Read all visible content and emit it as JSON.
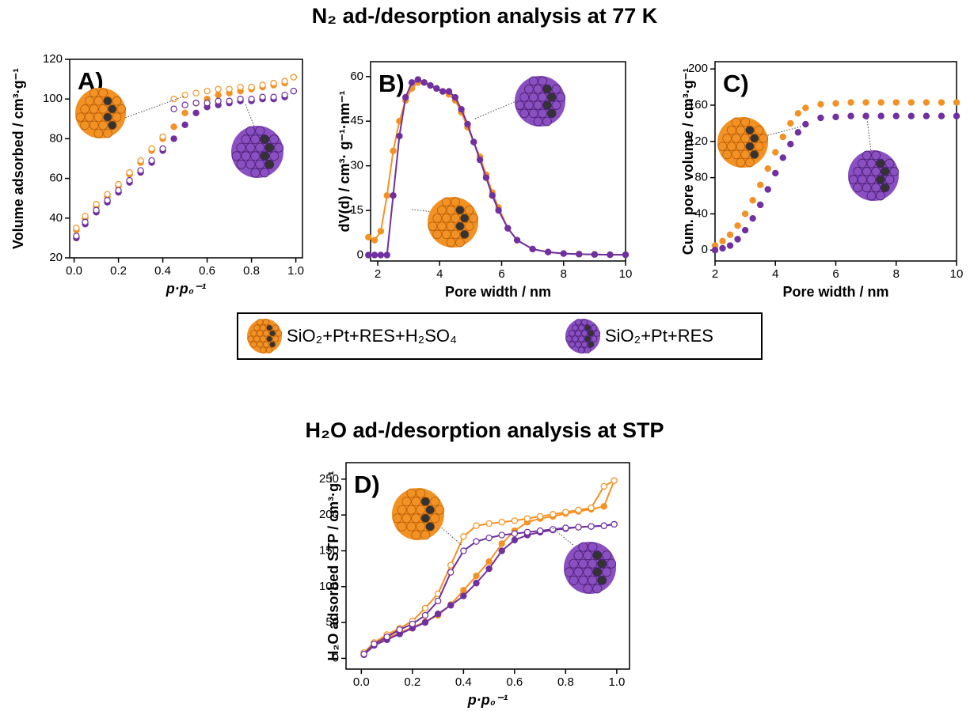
{
  "headings": [
    "N₂ ad-/desorption analysis at 77 K",
    "H₂O ad-/desorption analysis at STP"
  ],
  "chart_data": [
    {
      "type": "scatter",
      "title": "A)",
      "xlabel": "p·p₀⁻¹",
      "ylabel": "Volume adsorbed / cm³·g⁻¹",
      "xlim": [
        -0.02,
        1.03
      ],
      "ylim": [
        20,
        120
      ],
      "xticks": [
        {
          "value": 0,
          "label": "0.0"
        },
        {
          "value": 0.2,
          "label": "0.2"
        },
        {
          "value": 0.4,
          "label": "0.4"
        },
        {
          "value": 0.6,
          "label": "0.6"
        },
        {
          "value": 0.8,
          "label": "0.8"
        },
        {
          "value": 1,
          "label": "1.0"
        }
      ],
      "yticks": [
        20,
        40,
        60,
        80,
        100,
        120
      ],
      "line": false,
      "x": [
        0.01,
        0.05,
        0.1,
        0.15,
        0.2,
        0.25,
        0.3,
        0.35,
        0.4,
        0.45,
        0.5,
        0.55,
        0.6,
        0.65,
        0.7,
        0.75,
        0.8,
        0.85,
        0.9,
        0.95,
        0.99
      ],
      "series": [
        {
          "name": "SiO₂+Pt+RES+H₂SO₄",
          "color": "#f39224",
          "marker": "filled",
          "values": [
            34,
            40,
            46,
            51,
            56,
            62,
            68,
            74,
            80,
            86,
            93,
            98,
            100,
            102,
            103,
            104,
            105,
            106,
            107,
            108,
            111
          ]
        },
        {
          "color": "#f39224",
          "marker": "open",
          "values": [
            35,
            41,
            47,
            52,
            57,
            63,
            69,
            75,
            81,
            100,
            102,
            103,
            104,
            105,
            105,
            106,
            106,
            107,
            108,
            109,
            111
          ]
        },
        {
          "name": "SiO₂+Pt+RES",
          "color": "#7030a0",
          "marker": "filled",
          "values": [
            30,
            37,
            43,
            48,
            53,
            58,
            63,
            68,
            74,
            80,
            87,
            93,
            96,
            97,
            98,
            99,
            99,
            100,
            100,
            101,
            104
          ]
        },
        {
          "color": "#7030a0",
          "marker": "open",
          "values": [
            31,
            38,
            44,
            49,
            54,
            59,
            64,
            69,
            75,
            95,
            97,
            98,
            98,
            99,
            99,
            100,
            100,
            101,
            101,
            102,
            104
          ]
        }
      ]
    },
    {
      "type": "scatter",
      "title": "B)",
      "xlabel": "Pore width / nm",
      "ylabel": "dV(d) / cm³· g⁻¹·nm⁻¹",
      "xlim": [
        1.77,
        10
      ],
      "ylim": [
        -2,
        65
      ],
      "xticks": [
        2,
        4,
        6,
        8,
        10
      ],
      "yticks": [
        0,
        15,
        30,
        45,
        60
      ],
      "line": true,
      "x": [
        1.7,
        1.9,
        2.1,
        2.3,
        2.5,
        2.7,
        2.9,
        3.1,
        3.3,
        3.5,
        3.7,
        3.9,
        4.1,
        4.3,
        4.5,
        4.7,
        4.9,
        5.1,
        5.3,
        5.5,
        5.7,
        5.9,
        6.2,
        6.5,
        7,
        7.5,
        8,
        8.5,
        9,
        9.5,
        10
      ],
      "series": [
        {
          "color": "#f39224",
          "marker": "filled",
          "values": [
            6,
            5,
            8,
            20,
            35,
            45,
            52,
            56,
            58,
            58,
            57,
            56,
            55,
            54,
            52,
            48,
            43,
            38,
            33,
            27,
            21,
            16,
            9,
            5,
            2,
            1,
            0.5,
            0.3,
            0.2,
            0.1,
            0.1
          ]
        },
        {
          "color": "#7030a0",
          "marker": "filled",
          "values": [
            0,
            0,
            0,
            0,
            20,
            40,
            53,
            58,
            59,
            58,
            57,
            56,
            55,
            55,
            53,
            49,
            44,
            38,
            32,
            26,
            20,
            15,
            9,
            5,
            2,
            1,
            0.5,
            0.3,
            0.2,
            0.1,
            0.1
          ]
        }
      ]
    },
    {
      "type": "scatter",
      "title": "C)",
      "xlabel": "Pore width / nm",
      "ylabel": "Cum. pore volume / cm³·g⁻¹",
      "xlim": [
        2,
        10
      ],
      "ylim": [
        -12,
        208
      ],
      "xticks": [
        2,
        4,
        6,
        8,
        10
      ],
      "yticks": [
        0,
        40,
        80,
        120,
        160,
        200
      ],
      "line": false,
      "x": [
        2,
        2.25,
        2.5,
        2.75,
        3,
        3.25,
        3.5,
        3.75,
        4,
        4.25,
        4.5,
        4.75,
        5,
        5.5,
        6,
        6.5,
        7,
        7.5,
        8,
        8.5,
        9,
        9.5,
        10
      ],
      "series": [
        {
          "color": "#f39224",
          "marker": "filled",
          "values": [
            5,
            10,
            17,
            27,
            40,
            55,
            72,
            90,
            108,
            125,
            140,
            151,
            157,
            161,
            162,
            163,
            163,
            163,
            163,
            163,
            163,
            163,
            163
          ]
        },
        {
          "color": "#7030a0",
          "marker": "filled",
          "values": [
            0,
            2,
            5,
            12,
            22,
            35,
            50,
            67,
            85,
            102,
            117,
            130,
            139,
            146,
            147,
            148,
            148,
            148,
            148,
            148,
            148,
            148,
            148
          ]
        }
      ]
    },
    {
      "type": "scatter",
      "title": "D)",
      "xlabel": "p·p₀⁻¹",
      "ylabel": "H₂O adsorbed STP / cm³·g⁻¹",
      "xlim": [
        -0.06,
        1.05
      ],
      "ylim": [
        -15,
        273
      ],
      "xticks": [
        {
          "value": 0,
          "label": "0.0"
        },
        {
          "value": 0.2,
          "label": "0.2"
        },
        {
          "value": 0.4,
          "label": "0.4"
        },
        {
          "value": 0.6,
          "label": "0.6"
        },
        {
          "value": 0.8,
          "label": "0.8"
        },
        {
          "value": 1,
          "label": "1.0"
        }
      ],
      "yticks": [
        0,
        50,
        100,
        150,
        200,
        250
      ],
      "line": true,
      "x": [
        0.01,
        0.05,
        0.1,
        0.15,
        0.2,
        0.25,
        0.3,
        0.35,
        0.4,
        0.45,
        0.5,
        0.55,
        0.6,
        0.65,
        0.7,
        0.75,
        0.8,
        0.85,
        0.9,
        0.95,
        0.99
      ],
      "series": [
        {
          "color": "#f39224",
          "marker": "filled",
          "values": [
            7,
            20,
            28,
            36,
            43,
            51,
            60,
            75,
            95,
            115,
            135,
            160,
            178,
            190,
            195,
            198,
            202,
            205,
            208,
            212,
            248
          ]
        },
        {
          "color": "#f39224",
          "marker": "open",
          "values": [
            8,
            22,
            33,
            42,
            52,
            70,
            90,
            130,
            170,
            185,
            188,
            190,
            192,
            195,
            198,
            201,
            204,
            207,
            210,
            240,
            248
          ]
        },
        {
          "color": "#7030a0",
          "marker": "filled",
          "values": [
            5,
            18,
            26,
            34,
            42,
            50,
            62,
            74,
            87,
            105,
            125,
            150,
            165,
            172,
            176,
            179,
            181,
            183,
            184,
            185,
            187
          ]
        },
        {
          "color": "#7030a0",
          "marker": "open",
          "values": [
            6,
            20,
            30,
            40,
            48,
            60,
            80,
            120,
            150,
            163,
            168,
            172,
            174,
            176,
            178,
            180,
            182,
            183,
            184,
            185,
            187
          ]
        }
      ]
    }
  ]
}
